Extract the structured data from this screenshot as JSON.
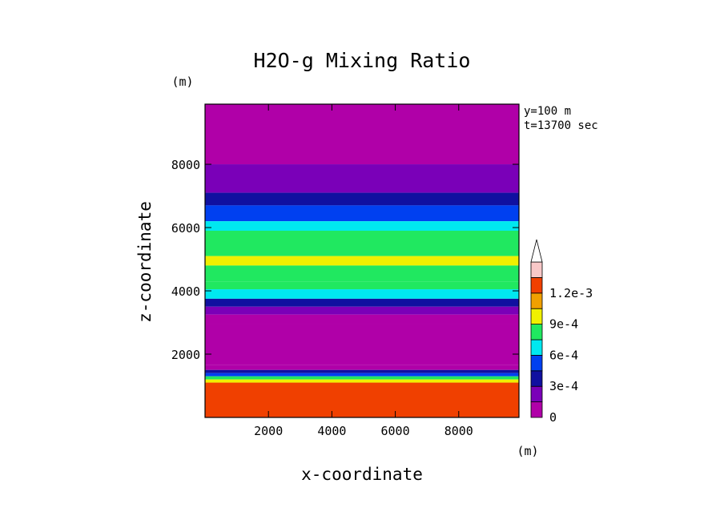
{
  "chart_data": {
    "type": "heatmap",
    "title": "H2O-g Mixing Ratio",
    "xlabel": "x-coordinate",
    "ylabel": "z-coordinate",
    "x_unit": "(m)",
    "y_unit": "(m)",
    "xlim": [
      0,
      9900
    ],
    "ylim": [
      0,
      9900
    ],
    "x_ticks": [
      "2000",
      "4000",
      "6000",
      "8000"
    ],
    "y_ticks": [
      "2000",
      "4000",
      "6000",
      "8000"
    ],
    "info": [
      "y=100 m",
      "t=13700 sec"
    ],
    "colorbar": {
      "levels": [
        0,
        0.00015,
        0.0003,
        0.00045,
        0.0006,
        0.00075,
        0.0009,
        0.00105,
        0.0012,
        0.00135
      ],
      "colors": [
        "#b000a8",
        "#7a00b8",
        "#1010a0",
        "#0040f0",
        "#00e8f0",
        "#20e860",
        "#f0f000",
        "#f0a000",
        "#f04000",
        "#f8c8c8",
        "#ffffff"
      ],
      "tick_labels": [
        "0",
        "3e-4",
        "6e-4",
        "9e-4",
        "1.2e-3"
      ],
      "tick_level_index": [
        0,
        2,
        4,
        6,
        8
      ],
      "extend": "max"
    },
    "bands": [
      {
        "z0": 8900,
        "z1": 9900,
        "value": 5e-05
      },
      {
        "z0": 8000,
        "z1": 8900,
        "value": 0.0001
      },
      {
        "z0": 7100,
        "z1": 8000,
        "value": 0.0002
      },
      {
        "z0": 6700,
        "z1": 7100,
        "value": 0.0004
      },
      {
        "z0": 6200,
        "z1": 6700,
        "value": 0.0005
      },
      {
        "z0": 5900,
        "z1": 6200,
        "value": 0.0007
      },
      {
        "z0": 5100,
        "z1": 5900,
        "value": 0.0008
      },
      {
        "z0": 4800,
        "z1": 5100,
        "value": 0.0009
      },
      {
        "z0": 4300,
        "z1": 4800,
        "value": 0.00085
      },
      {
        "z0": 4050,
        "z1": 4300,
        "value": 0.00075
      },
      {
        "z0": 3750,
        "z1": 4050,
        "value": 0.0006
      },
      {
        "z0": 3500,
        "z1": 3750,
        "value": 0.0004
      },
      {
        "z0": 3250,
        "z1": 3500,
        "value": 0.0002
      },
      {
        "z0": 2950,
        "z1": 3250,
        "value": 0.0001
      },
      {
        "z0": 1650,
        "z1": 2950,
        "value": 0.0
      },
      {
        "z0": 1500,
        "z1": 1650,
        "value": 0.0001
      },
      {
        "z0": 1400,
        "z1": 1500,
        "value": 0.0003
      },
      {
        "z0": 1300,
        "z1": 1400,
        "value": 0.0005
      },
      {
        "z0": 1200,
        "z1": 1300,
        "value": 0.0008
      },
      {
        "z0": 1100,
        "z1": 1200,
        "value": 0.001
      },
      {
        "z0": 1000,
        "z1": 1100,
        "value": 0.0012
      },
      {
        "z0": 0,
        "z1": 1000,
        "value": 0.0013
      }
    ]
  }
}
